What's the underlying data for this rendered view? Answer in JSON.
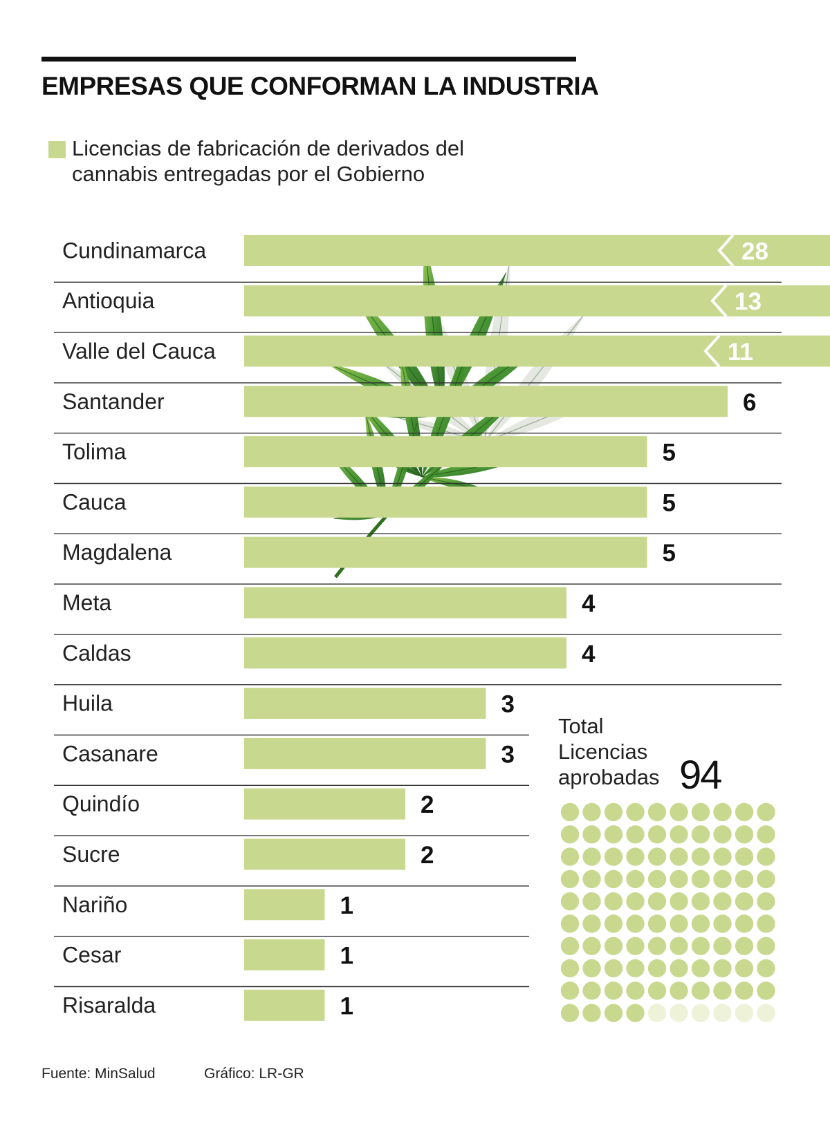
{
  "title": "EMPRESAS QUE CONFORMAN LA INDUSTRIA",
  "legend": {
    "label": "Licencias de fabricación de derivados del cannabis entregadas por el Gobierno",
    "color": "#c8d98f"
  },
  "chart_data": {
    "type": "bar",
    "orientation": "horizontal",
    "categories": [
      "Cundinamarca",
      "Antioquia",
      "Valle del Cauca",
      "Santander",
      "Tolima",
      "Cauca",
      "Magdalena",
      "Meta",
      "Caldas",
      "Huila",
      "Casanare",
      "Quindío",
      "Sucre",
      "Nariño",
      "Cesar",
      "Risaralda"
    ],
    "values": [
      28,
      13,
      11,
      6,
      5,
      5,
      5,
      4,
      4,
      3,
      3,
      2,
      2,
      1,
      1,
      1
    ],
    "value_labels": [
      "28",
      "13",
      "11",
      "6",
      "5",
      "5",
      "5",
      "4",
      "4",
      "3",
      "3",
      "2",
      "2",
      "1",
      "1",
      "1"
    ],
    "truncated_bars": [
      "Cundinamarca",
      "Antioquia",
      "Valle del Cauca"
    ],
    "bar_color": "#c8d98f",
    "grid": false
  },
  "total": {
    "label_lines": [
      "Total",
      "Licencias",
      "aprobadas"
    ],
    "value": "94",
    "dot_count": 94,
    "dot_capacity": 100,
    "dot_color": "#c8d98f",
    "dot_empty_color": "#eef2d8"
  },
  "decoration": {
    "image": "cannabis-leaf"
  },
  "footer": {
    "source": "Fuente: MinSalud",
    "credit": "Gráfico: LR-GR"
  }
}
